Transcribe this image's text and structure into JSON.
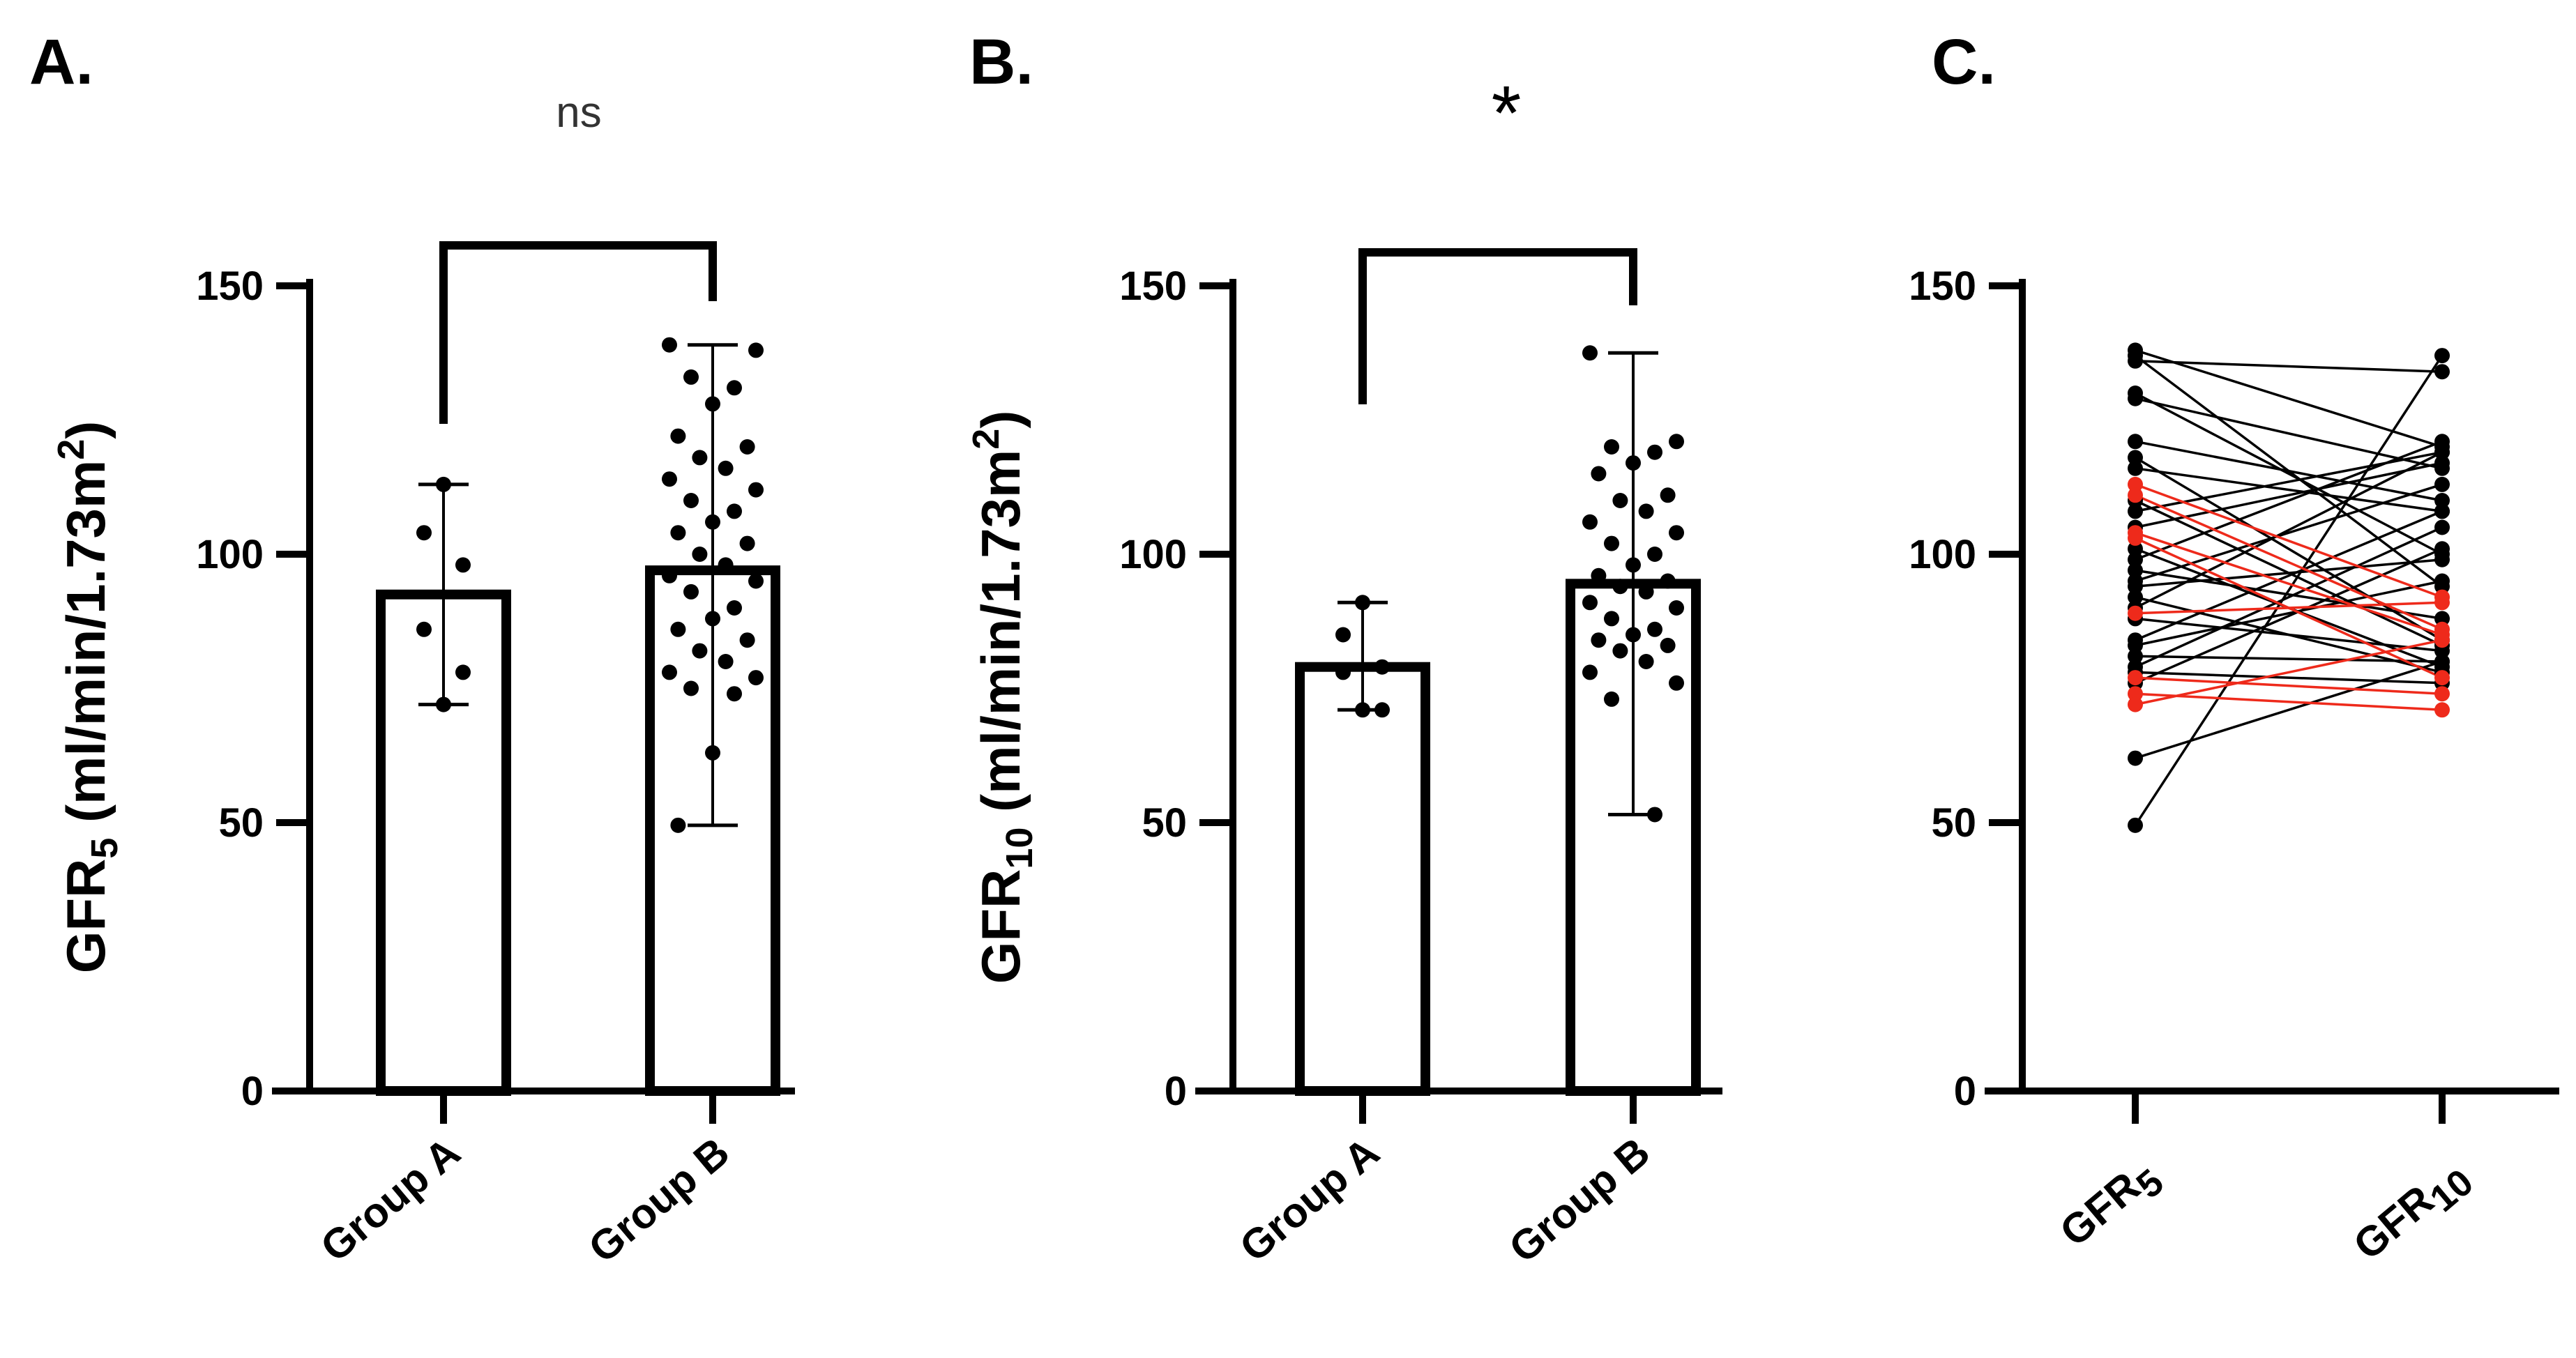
{
  "chart_data": [
    {
      "panel": "A.",
      "type": "bar",
      "ylabel": {
        "main": "GFR",
        "sub": "5",
        "unit": " (ml/min/1.73m",
        "sup": "2",
        "close": ")"
      },
      "ylim": [
        0,
        150
      ],
      "yticks": [
        0,
        50,
        100,
        150
      ],
      "categories": [
        "Group A",
        "Group B"
      ],
      "values": [
        92.5,
        97.0
      ],
      "error_range": [
        [
          72,
          113
        ],
        [
          49.5,
          139
        ]
      ],
      "points": [
        [
          113,
          104,
          98,
          86,
          78,
          72
        ],
        [
          139,
          138,
          133,
          131,
          128,
          122,
          120,
          118,
          116,
          114,
          112,
          110,
          108,
          106,
          104,
          102,
          100,
          98,
          96,
          95,
          93,
          90,
          88,
          86,
          84,
          82,
          80,
          78,
          77,
          75,
          74,
          63,
          49.5
        ]
      ],
      "significance": {
        "text": "ns",
        "between": [
          0,
          1
        ]
      }
    },
    {
      "panel": "B.",
      "type": "bar",
      "ylabel": {
        "main": "GFR",
        "sub": "10",
        "unit": " (ml/min/1.73m",
        "sup": "2",
        "close": ")"
      },
      "ylim": [
        0,
        150
      ],
      "yticks": [
        0,
        50,
        100,
        150
      ],
      "categories": [
        "Group A",
        "Group B"
      ],
      "values": [
        79.0,
        94.5
      ],
      "error_range": [
        [
          71,
          91
        ],
        [
          51.5,
          137.5
        ]
      ],
      "points": [
        [
          91,
          85,
          79,
          78,
          71,
          71
        ],
        [
          137.5,
          121,
          120,
          119,
          117,
          115,
          111,
          110,
          108,
          106,
          104,
          102,
          100,
          98,
          96,
          95,
          94,
          93,
          91,
          90,
          88,
          86,
          85,
          84,
          83,
          82,
          80,
          78,
          76,
          73,
          51.5
        ]
      ],
      "significance": {
        "text": "*",
        "between": [
          0,
          1
        ]
      }
    },
    {
      "panel": "C.",
      "type": "line",
      "ylabel": {
        "main": "",
        "sub": "",
        "unit": "",
        "sup": "",
        "close": ""
      },
      "ylim": [
        0,
        150
      ],
      "yticks": [
        0,
        50,
        100,
        150
      ],
      "categories": [
        {
          "main": "GFR",
          "sub": "5"
        },
        {
          "main": "GFR",
          "sub": "10"
        }
      ],
      "pairs_black": [
        [
          138,
          120
        ],
        [
          137,
          94
        ],
        [
          136,
          134
        ],
        [
          130,
          100
        ],
        [
          129,
          116
        ],
        [
          121,
          110
        ],
        [
          118,
          84
        ],
        [
          116,
          108
        ],
        [
          110,
          83
        ],
        [
          108,
          119
        ],
        [
          105,
          117
        ],
        [
          101,
          79
        ],
        [
          99,
          121
        ],
        [
          97,
          88
        ],
        [
          95,
          113
        ],
        [
          94,
          99
        ],
        [
          92,
          78
        ],
        [
          90,
          119
        ],
        [
          88,
          82
        ],
        [
          84,
          108
        ],
        [
          83,
          95
        ],
        [
          81,
          80
        ],
        [
          79,
          105
        ],
        [
          78,
          76
        ],
        [
          76,
          101
        ],
        [
          62,
          80
        ],
        [
          49.5,
          137
        ]
      ],
      "pairs_red": [
        [
          113,
          92
        ],
        [
          111,
          86
        ],
        [
          104,
          85
        ],
        [
          103,
          77
        ],
        [
          89,
          91
        ],
        [
          77,
          74
        ],
        [
          74,
          71
        ],
        [
          72,
          84
        ]
      ],
      "colors": {
        "black": "#000000",
        "red": "#ee2a1b"
      }
    }
  ]
}
